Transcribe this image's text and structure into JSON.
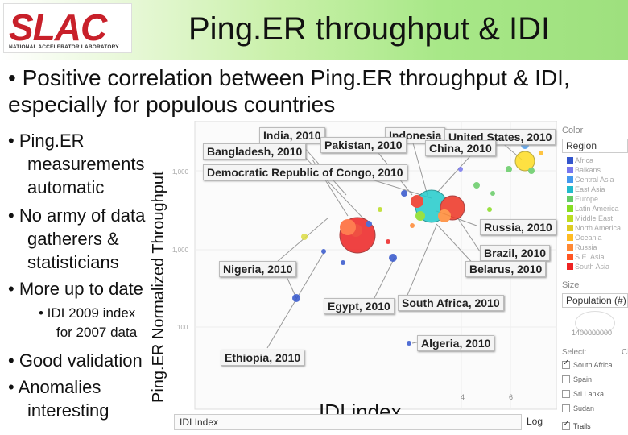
{
  "logo": {
    "word": "SLAC",
    "sub": "NATIONAL ACCELERATOR LABORATORY"
  },
  "title": "Ping.ER throughput & IDI",
  "main_bullet": "• Positive correlation between Ping.ER throughput & IDI, especially for populous countries",
  "bullets": {
    "b1": "• Ping.ER measurements automatic",
    "b1a": "• Ping.ER",
    "b1b": "measurements",
    "b1c": "automatic",
    "b2a": "• No army of data",
    "b2b": "gatherers &",
    "b2c": "statisticians",
    "b3": "• More up to date",
    "sub1a": "• IDI 2009 index",
    "sub1b": "for 2007 data",
    "b4": "• Good validation",
    "b5a": "• Anomalies",
    "b5b": "interesting"
  },
  "ylabel": "Ping.ER Normalized Throughput",
  "xlabel": "IDI index",
  "plot": {
    "labels": {
      "india": "India, 2010",
      "indonesia": "Indonesia",
      "usa": "United States, 2010",
      "pakistan": "Pakistan, 2010",
      "china": "China, 2010",
      "bangladesh": "Bangladesh, 2010",
      "drc": "Democratic Republic of Congo, 2010",
      "russia": "Russia, 2010",
      "brazil": "Brazil, 2010",
      "nigeria": "Nigeria, 2010",
      "belarus": "Belarus, 2010",
      "egypt": "Egypt, 2010",
      "southafrica": "South Africa, 2010",
      "algeria": "Algeria, 2010",
      "ethiopia": "Ethiopia, 2010"
    },
    "yticks": [
      "1,000",
      "1,000",
      "100"
    ],
    "xticks": [
      "4",
      "6"
    ],
    "xaxis_select": "IDI Index",
    "scale_select": "Log"
  },
  "panel": {
    "color_label": "Color",
    "region_select": "Region",
    "regions": [
      "Africa",
      "Balkans",
      "Central Asia",
      "East Asia",
      "Europe",
      "Latin America",
      "Middle East",
      "North America",
      "Oceania",
      "Russia",
      "S.E. Asia",
      "South Asia"
    ],
    "region_colors": [
      "#3355cc",
      "#7777ee",
      "#4499ee",
      "#22bbcc",
      "#66cc66",
      "#88dd22",
      "#bbdd22",
      "#ddcc22",
      "#ffbb22",
      "#ff8833",
      "#ff5522",
      "#ee2222"
    ],
    "size_label": "Size",
    "size_select": "Population (#)",
    "size_value": "1400000000",
    "select_label": "Select:",
    "select_clear": "Cl",
    "checks": [
      "South Africa",
      "Spain",
      "Sri Lanka",
      "Sudan"
    ],
    "trails": "Trails"
  }
}
